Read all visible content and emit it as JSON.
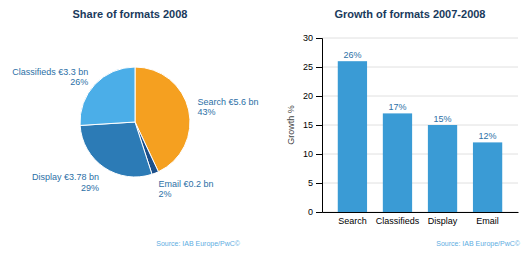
{
  "chart_data": [
    {
      "type": "pie",
      "title": "Share of formats 2008",
      "categories": [
        "Search €5.6 bn",
        "Email €0.2 bn",
        "Display €3.78 bn",
        "Classifieds €3.3 bn"
      ],
      "values": [
        43,
        2,
        29,
        26
      ],
      "value_labels": [
        "43%",
        "2%",
        "29%",
        "26%"
      ],
      "data_labels": true,
      "colors": [
        "#F5A020",
        "#1B4F8A",
        "#2C7BB6",
        "#4BAEE8"
      ],
      "annotations": [
        "Source: IAB Europe/PwC©"
      ]
    },
    {
      "type": "bar",
      "title": "Growth of formats 2007-2008",
      "categories": [
        "Search",
        "Classifieds",
        "Display",
        "Email"
      ],
      "values": [
        26,
        17,
        15,
        12
      ],
      "value_labels": [
        "26%",
        "17%",
        "15%",
        "12%"
      ],
      "data_labels": true,
      "color": "#3A9BD5",
      "y_label": "Growth %",
      "ylim": [
        0,
        30
      ],
      "yticks": [
        0,
        5,
        10,
        15,
        20,
        25,
        30
      ],
      "grid": true,
      "annotations": [
        "Source: IAB Europe/PwC©"
      ]
    }
  ]
}
